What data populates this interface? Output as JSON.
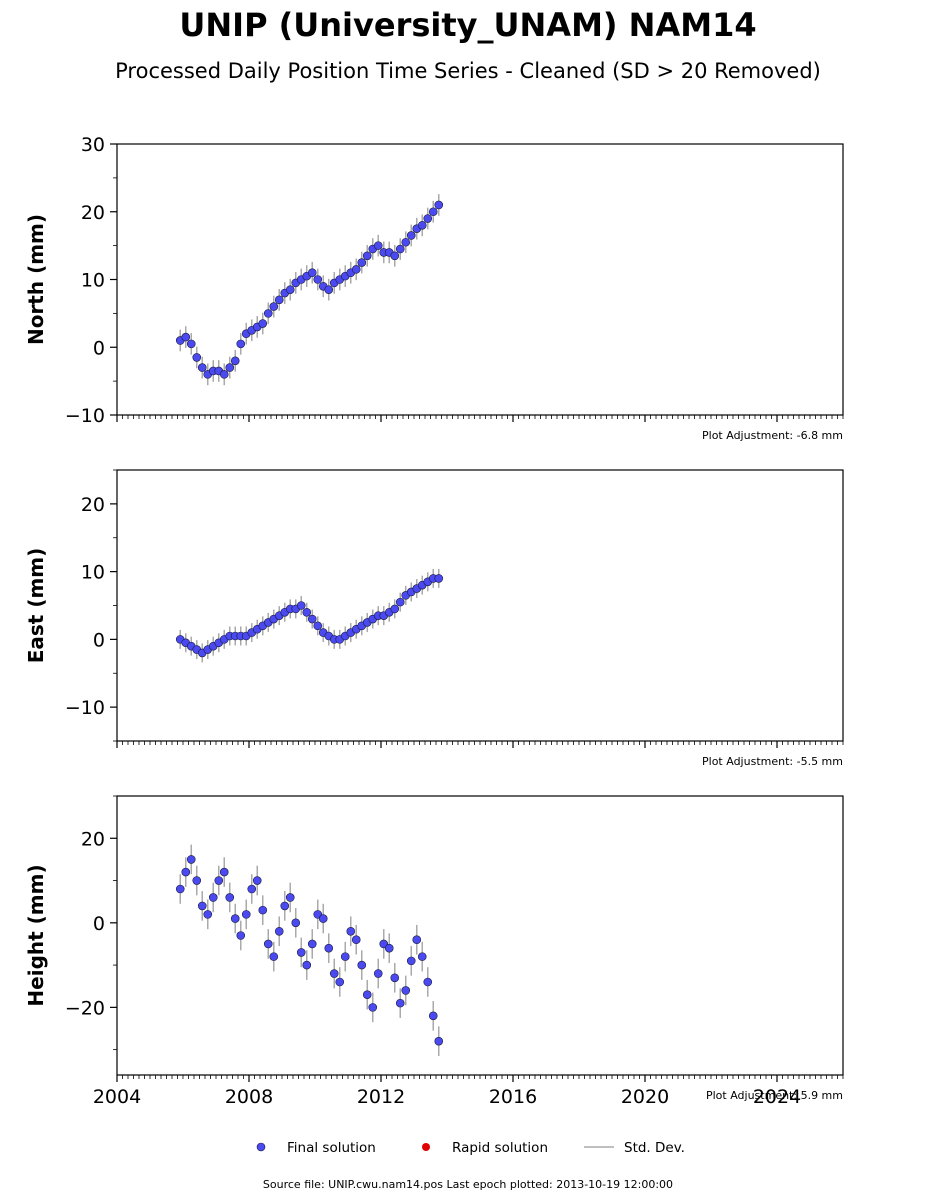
{
  "title": "UNIP (University_UNAM) NAM14",
  "subtitle": "Processed Daily Position Time Series - Cleaned (SD > 20 Removed)",
  "footer": "Source file: UNIP.cwu.nam14.pos  Last epoch plotted: 2013-10-19 12:00:00",
  "legend": {
    "final": "Final solution",
    "rapid": "Rapid solution",
    "std": "Std. Dev."
  },
  "colors": {
    "final": "#4a4af0",
    "final_edge": "#1a1a3a",
    "rapid": "#e00000",
    "std": "#aaaaaa"
  },
  "panels": [
    {
      "ylabel": "North (mm)",
      "adjustment": "Plot Adjustment: -6.8 mm"
    },
    {
      "ylabel": "East (mm)",
      "adjustment": "Plot Adjustment: -5.5 mm"
    },
    {
      "ylabel": "Height (mm)",
      "adjustment": "Plot Adjustment: 5.9 mm"
    }
  ],
  "chart_data": [
    {
      "type": "scatter",
      "ylabel": "North (mm)",
      "xlim": [
        "2004-01-01",
        "2026-01-01"
      ],
      "ylim": [
        -10,
        30
      ],
      "yticks": [
        -10,
        0,
        10,
        20,
        30
      ],
      "xticks": [
        "2004",
        "2008",
        "2012",
        "2016",
        "2020",
        "2024"
      ],
      "show_xtick_labels": false,
      "series": [
        {
          "name": "Final solution",
          "x": [
            "2005-12-01",
            "2006-02-01",
            "2006-04-01",
            "2006-06-01",
            "2006-08-01",
            "2006-10-01",
            "2006-12-01",
            "2007-02-01",
            "2007-04-01",
            "2007-06-01",
            "2007-08-01",
            "2007-10-01",
            "2007-12-01",
            "2008-02-01",
            "2008-04-01",
            "2008-06-01",
            "2008-08-01",
            "2008-10-01",
            "2008-12-01",
            "2009-02-01",
            "2009-04-01",
            "2009-06-01",
            "2009-08-01",
            "2009-10-01",
            "2009-12-01",
            "2010-02-01",
            "2010-04-01",
            "2010-06-01",
            "2010-08-01",
            "2010-10-01",
            "2010-12-01",
            "2011-02-01",
            "2011-04-01",
            "2011-06-01",
            "2011-08-01",
            "2011-10-01",
            "2011-12-01",
            "2012-02-01",
            "2012-04-01",
            "2012-06-01",
            "2012-08-01",
            "2012-10-01",
            "2012-12-01",
            "2013-02-01",
            "2013-04-01",
            "2013-06-01",
            "2013-08-01",
            "2013-10-01"
          ],
          "y": [
            1.0,
            1.5,
            0.5,
            -1.5,
            -3.0,
            -4.0,
            -3.5,
            -3.5,
            -4.0,
            -3.0,
            -2.0,
            0.5,
            2.0,
            2.5,
            3.0,
            3.5,
            5.0,
            6.0,
            7.0,
            8.0,
            8.5,
            9.5,
            10.0,
            10.5,
            11.0,
            10.0,
            9.0,
            8.5,
            9.5,
            10.0,
            10.5,
            11.0,
            11.5,
            12.5,
            13.5,
            14.5,
            15.0,
            14.0,
            14.0,
            13.5,
            14.5,
            15.5,
            16.5,
            17.5,
            18.0,
            19.0,
            20.0,
            21.0
          ]
        }
      ]
    },
    {
      "type": "scatter",
      "ylabel": "East (mm)",
      "xlim": [
        "2004-01-01",
        "2026-01-01"
      ],
      "ylim": [
        -15,
        25
      ],
      "yticks": [
        -10,
        0,
        10,
        20
      ],
      "xticks": [
        "2004",
        "2008",
        "2012",
        "2016",
        "2020",
        "2024"
      ],
      "show_xtick_labels": false,
      "series": [
        {
          "name": "Final solution",
          "x": [
            "2005-12-01",
            "2006-02-01",
            "2006-04-01",
            "2006-06-01",
            "2006-08-01",
            "2006-10-01",
            "2006-12-01",
            "2007-02-01",
            "2007-04-01",
            "2007-06-01",
            "2007-08-01",
            "2007-10-01",
            "2007-12-01",
            "2008-02-01",
            "2008-04-01",
            "2008-06-01",
            "2008-08-01",
            "2008-10-01",
            "2008-12-01",
            "2009-02-01",
            "2009-04-01",
            "2009-06-01",
            "2009-08-01",
            "2009-10-01",
            "2009-12-01",
            "2010-02-01",
            "2010-04-01",
            "2010-06-01",
            "2010-08-01",
            "2010-10-01",
            "2010-12-01",
            "2011-02-01",
            "2011-04-01",
            "2011-06-01",
            "2011-08-01",
            "2011-10-01",
            "2011-12-01",
            "2012-02-01",
            "2012-04-01",
            "2012-06-01",
            "2012-08-01",
            "2012-10-01",
            "2012-12-01",
            "2013-02-01",
            "2013-04-01",
            "2013-06-01",
            "2013-08-01",
            "2013-10-01"
          ],
          "y": [
            0.0,
            -0.5,
            -1.0,
            -1.5,
            -2.0,
            -1.5,
            -1.0,
            -0.5,
            0.0,
            0.5,
            0.5,
            0.5,
            0.5,
            1.0,
            1.5,
            2.0,
            2.5,
            3.0,
            3.5,
            4.0,
            4.5,
            4.5,
            5.0,
            4.0,
            3.0,
            2.0,
            1.0,
            0.5,
            0.0,
            0.0,
            0.5,
            1.0,
            1.5,
            2.0,
            2.5,
            3.0,
            3.5,
            3.5,
            4.0,
            4.5,
            5.5,
            6.5,
            7.0,
            7.5,
            8.0,
            8.5,
            9.0,
            9.0
          ]
        }
      ]
    },
    {
      "type": "scatter",
      "ylabel": "Height (mm)",
      "xlim": [
        "2004-01-01",
        "2026-01-01"
      ],
      "ylim": [
        -36,
        30
      ],
      "yticks": [
        -20,
        0,
        20
      ],
      "xticks": [
        "2004",
        "2008",
        "2012",
        "2016",
        "2020",
        "2024"
      ],
      "show_xtick_labels": true,
      "series": [
        {
          "name": "Final solution",
          "x": [
            "2005-12-01",
            "2006-02-01",
            "2006-04-01",
            "2006-06-01",
            "2006-08-01",
            "2006-10-01",
            "2006-12-01",
            "2007-02-01",
            "2007-04-01",
            "2007-06-01",
            "2007-08-01",
            "2007-10-01",
            "2007-12-01",
            "2008-02-01",
            "2008-04-01",
            "2008-06-01",
            "2008-08-01",
            "2008-10-01",
            "2008-12-01",
            "2009-02-01",
            "2009-04-01",
            "2009-06-01",
            "2009-08-01",
            "2009-10-01",
            "2009-12-01",
            "2010-02-01",
            "2010-04-01",
            "2010-06-01",
            "2010-08-01",
            "2010-10-01",
            "2010-12-01",
            "2011-02-01",
            "2011-04-01",
            "2011-06-01",
            "2011-08-01",
            "2011-10-01",
            "2011-12-01",
            "2012-02-01",
            "2012-04-01",
            "2012-06-01",
            "2012-08-01",
            "2012-10-01",
            "2012-12-01",
            "2013-02-01",
            "2013-04-01",
            "2013-06-01",
            "2013-08-01",
            "2013-10-01"
          ],
          "y": [
            8.0,
            12.0,
            15.0,
            10.0,
            4.0,
            2.0,
            6.0,
            10.0,
            12.0,
            6.0,
            1.0,
            -3.0,
            2.0,
            8.0,
            10.0,
            3.0,
            -5.0,
            -8.0,
            -2.0,
            4.0,
            6.0,
            0.0,
            -7.0,
            -10.0,
            -5.0,
            2.0,
            1.0,
            -6.0,
            -12.0,
            -14.0,
            -8.0,
            -2.0,
            -4.0,
            -10.0,
            -17.0,
            -20.0,
            -12.0,
            -5.0,
            -6.0,
            -13.0,
            -19.0,
            -16.0,
            -9.0,
            -4.0,
            -8.0,
            -14.0,
            -22.0,
            -28.0
          ]
        }
      ]
    }
  ]
}
